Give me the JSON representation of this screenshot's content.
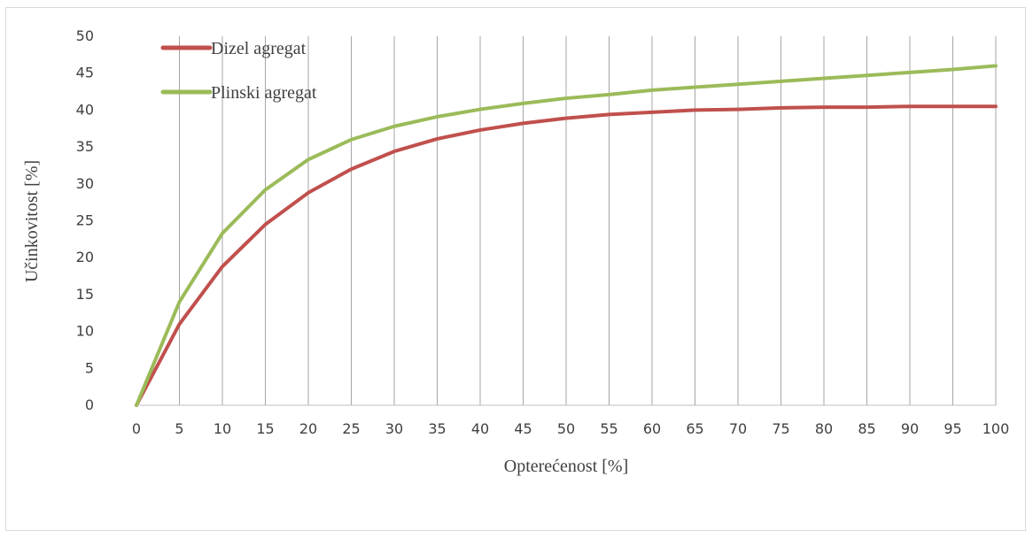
{
  "chart_data": {
    "type": "line",
    "title": "",
    "xlabel": "Opterećenost [%]",
    "ylabel": "Učinkovitost [%]",
    "x": [
      0,
      5,
      10,
      15,
      20,
      25,
      30,
      35,
      40,
      45,
      50,
      55,
      60,
      65,
      70,
      75,
      80,
      85,
      90,
      95,
      100
    ],
    "ylim": [
      0,
      50
    ],
    "yticks": [
      0,
      5,
      10,
      15,
      20,
      25,
      30,
      35,
      40,
      45,
      50
    ],
    "grid": "vertical",
    "legend_position": "top-left",
    "series": [
      {
        "name": "Dizel agregat",
        "color": "#c0504d",
        "values": [
          0,
          11,
          18.8,
          24.5,
          28.8,
          32,
          34.4,
          36.1,
          37.3,
          38.2,
          38.9,
          39.4,
          39.7,
          40,
          40.1,
          40.3,
          40.4,
          40.4,
          40.5,
          40.5,
          40.5
        ]
      },
      {
        "name": "Plinski agregat",
        "color": "#9bbb59",
        "values": [
          0,
          14,
          23.3,
          29.2,
          33.3,
          36,
          37.8,
          39.1,
          40.1,
          40.9,
          41.6,
          42.1,
          42.7,
          43.1,
          43.5,
          43.9,
          44.3,
          44.7,
          45.1,
          45.5,
          46
        ]
      }
    ]
  }
}
